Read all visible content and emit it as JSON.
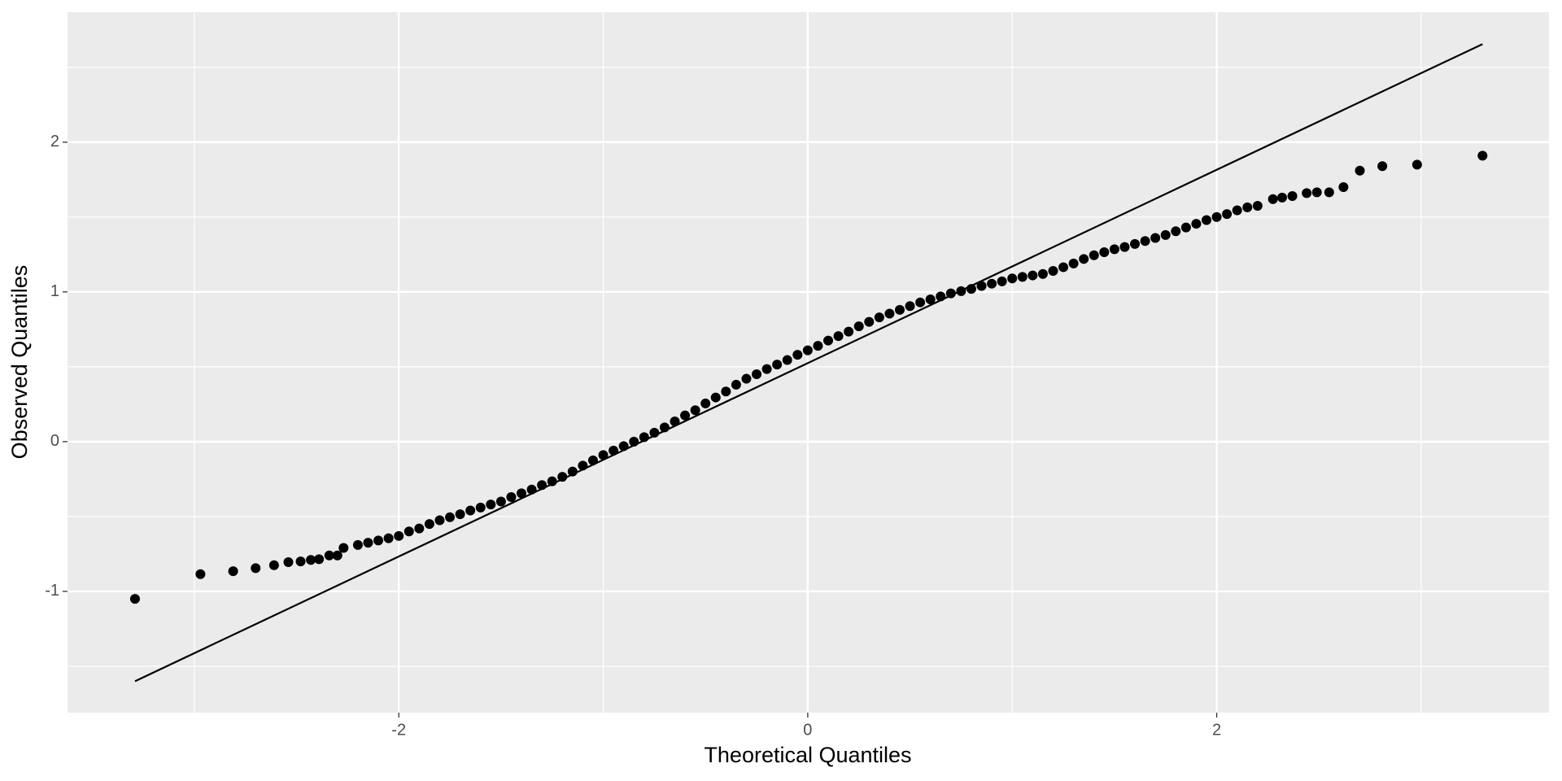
{
  "chart_data": {
    "type": "scatter",
    "x_label": "Theoretical Quantiles",
    "y_label": "Observed Quantiles",
    "xlim": [
      -3.62,
      3.625
    ],
    "ylim": [
      -1.81,
      2.868
    ],
    "xticks": [
      -2,
      0,
      2
    ],
    "yticks": [
      -1,
      0,
      1,
      2
    ],
    "grid": true,
    "color": "#000000",
    "x": [
      -3.29,
      -2.97,
      -2.81,
      -2.7,
      -2.61,
      -2.54,
      -2.48,
      -2.43,
      -2.39,
      -2.34,
      -2.3,
      -2.27,
      -2.2,
      -2.15,
      -2.1,
      -2.05,
      -2.0,
      -1.95,
      -1.9,
      -1.85,
      -1.8,
      -1.75,
      -1.7,
      -1.65,
      -1.6,
      -1.55,
      -1.5,
      -1.45,
      -1.4,
      -1.35,
      -1.3,
      -1.25,
      -1.2,
      -1.15,
      -1.1,
      -1.05,
      -1.0,
      -0.95,
      -0.9,
      -0.85,
      -0.8,
      -0.75,
      -0.7,
      -0.65,
      -0.6,
      -0.55,
      -0.5,
      -0.45,
      -0.4,
      -0.35,
      -0.3,
      -0.25,
      -0.2,
      -0.15,
      -0.1,
      -0.05,
      0,
      0.05,
      0.1,
      0.15,
      0.2,
      0.25,
      0.3,
      0.35,
      0.4,
      0.45,
      0.5,
      0.55,
      0.6,
      0.65,
      0.7,
      0.75,
      0.8,
      0.85,
      0.9,
      0.95,
      1.0,
      1.05,
      1.1,
      1.15,
      1.2,
      1.25,
      1.3,
      1.35,
      1.4,
      1.45,
      1.5,
      1.55,
      1.6,
      1.65,
      1.7,
      1.75,
      1.8,
      1.85,
      1.9,
      1.95,
      2.0,
      2.05,
      2.1,
      2.15,
      2.2,
      2.275,
      2.32,
      2.37,
      2.44,
      2.49,
      2.55,
      2.62,
      2.7,
      2.81,
      2.98,
      3.3
    ],
    "values": [
      -1.05,
      -0.885,
      -0.865,
      -0.845,
      -0.825,
      -0.805,
      -0.8,
      -0.79,
      -0.785,
      -0.76,
      -0.76,
      -0.71,
      -0.69,
      -0.675,
      -0.66,
      -0.645,
      -0.63,
      -0.6,
      -0.58,
      -0.55,
      -0.525,
      -0.505,
      -0.485,
      -0.46,
      -0.44,
      -0.42,
      -0.4,
      -0.37,
      -0.345,
      -0.32,
      -0.29,
      -0.265,
      -0.235,
      -0.2,
      -0.16,
      -0.125,
      -0.09,
      -0.06,
      -0.03,
      0.0,
      0.03,
      0.06,
      0.095,
      0.135,
      0.175,
      0.21,
      0.255,
      0.295,
      0.335,
      0.38,
      0.42,
      0.45,
      0.485,
      0.515,
      0.545,
      0.58,
      0.61,
      0.64,
      0.675,
      0.705,
      0.735,
      0.77,
      0.8,
      0.83,
      0.855,
      0.88,
      0.905,
      0.93,
      0.95,
      0.97,
      0.99,
      1.005,
      1.02,
      1.04,
      1.055,
      1.07,
      1.09,
      1.1,
      1.11,
      1.12,
      1.14,
      1.165,
      1.19,
      1.22,
      1.245,
      1.265,
      1.285,
      1.3,
      1.32,
      1.34,
      1.36,
      1.38,
      1.405,
      1.43,
      1.455,
      1.48,
      1.5,
      1.52,
      1.545,
      1.565,
      1.575,
      1.62,
      1.63,
      1.64,
      1.66,
      1.665,
      1.665,
      1.7,
      1.81,
      1.84,
      1.85,
      1.91
    ],
    "line": {
      "x": [
        -3.29,
        3.3
      ],
      "values": [
        -1.6,
        2.655
      ],
      "color": "#000000"
    }
  }
}
